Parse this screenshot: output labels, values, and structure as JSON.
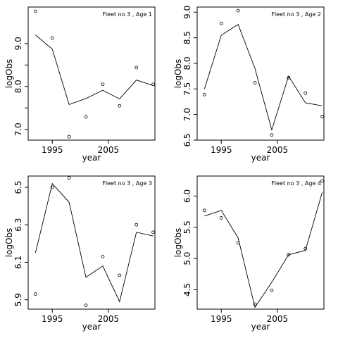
{
  "chart_data": [
    {
      "type": "scatter",
      "title": "Fleet no 3 , Age 1",
      "xlabel": "year",
      "ylabel": "logObs",
      "xlim": [
        1990.7,
        2013.3
      ],
      "ylim": [
        6.75,
        9.85
      ],
      "xticks": [
        1995,
        2005
      ],
      "xtick_labels": [
        "1995",
        "2005"
      ],
      "yticks": [
        7.0,
        7.5,
        8.0,
        8.5,
        9.0
      ],
      "ytick_labels": [
        "7.0",
        "",
        "8.0",
        "",
        "9.0"
      ],
      "x": [
        1992,
        1995,
        1998,
        2001,
        2004,
        2007,
        2010,
        2013
      ],
      "series": [
        {
          "kind": "observed",
          "values": [
            9.75,
            9.13,
            6.83,
            7.29,
            8.05,
            7.55,
            8.44,
            8.05
          ]
        },
        {
          "kind": "fitted",
          "values": [
            9.2,
            8.87,
            7.58,
            7.72,
            7.91,
            7.71,
            8.15,
            8.02
          ]
        }
      ]
    },
    {
      "type": "scatter",
      "title": "Fleet no 3 , Age 2",
      "xlabel": "year",
      "ylabel": "logObs",
      "xlim": [
        1990.7,
        2013.3
      ],
      "ylim": [
        6.5,
        9.1
      ],
      "xticks": [
        1995,
        2005
      ],
      "xtick_labels": [
        "1995",
        "2005"
      ],
      "yticks": [
        6.5,
        7.0,
        7.5,
        8.0,
        8.5,
        9.0
      ],
      "ytick_labels": [
        "6.5",
        "7.0",
        "7.5",
        "8.0",
        "8.5",
        "9.0"
      ],
      "x": [
        1992,
        1995,
        1998,
        2001,
        2004,
        2007,
        2010,
        2013
      ],
      "series": [
        {
          "kind": "observed",
          "values": [
            7.39,
            8.78,
            9.03,
            7.62,
            6.6,
            7.72,
            7.42,
            6.96
          ]
        },
        {
          "kind": "fitted",
          "values": [
            7.5,
            8.55,
            8.76,
            7.9,
            6.7,
            7.75,
            7.23,
            7.17
          ]
        }
      ]
    },
    {
      "type": "scatter",
      "title": "Fleet no 3 , Age 3",
      "xlabel": "year",
      "ylabel": "logObs",
      "xlim": [
        1990.7,
        2013.3
      ],
      "ylim": [
        5.85,
        6.56
      ],
      "xticks": [
        1995,
        2005
      ],
      "xtick_labels": [
        "1995",
        "2005"
      ],
      "yticks": [
        5.9,
        6.1,
        6.3,
        6.5
      ],
      "ytick_labels": [
        "5.9",
        "6.1",
        "6.3",
        "6.5"
      ],
      "x": [
        1992,
        1995,
        1998,
        2001,
        2004,
        2007,
        2010,
        2013
      ],
      "series": [
        {
          "kind": "observed",
          "values": [
            5.93,
            6.5,
            6.55,
            5.87,
            6.13,
            6.03,
            6.3,
            6.26
          ]
        },
        {
          "kind": "fitted",
          "values": [
            6.15,
            6.52,
            6.42,
            6.02,
            6.08,
            5.89,
            6.26,
            6.24
          ]
        }
      ]
    },
    {
      "type": "scatter",
      "title": "Fleet no 3 , Age 4",
      "xlabel": "year",
      "ylabel": "logObs",
      "xlim": [
        1990.7,
        2013.3
      ],
      "ylim": [
        4.19,
        6.32
      ],
      "xticks": [
        1995,
        2005
      ],
      "xtick_labels": [
        "1995",
        "2005"
      ],
      "yticks": [
        4.5,
        5.0,
        5.5,
        6.0
      ],
      "ytick_labels": [
        "4.5",
        "5.0",
        "5.5",
        "6.0"
      ],
      "x": [
        1992,
        1995,
        1998,
        2001,
        2004,
        2007,
        2010,
        2013
      ],
      "series": [
        {
          "kind": "observed",
          "values": [
            5.77,
            5.65,
            5.25,
            4.27,
            4.49,
            5.06,
            5.16,
            6.24
          ]
        },
        {
          "kind": "fitted",
          "values": [
            5.68,
            5.77,
            5.33,
            4.22,
            4.62,
            5.06,
            5.13,
            6.06
          ]
        }
      ]
    }
  ]
}
